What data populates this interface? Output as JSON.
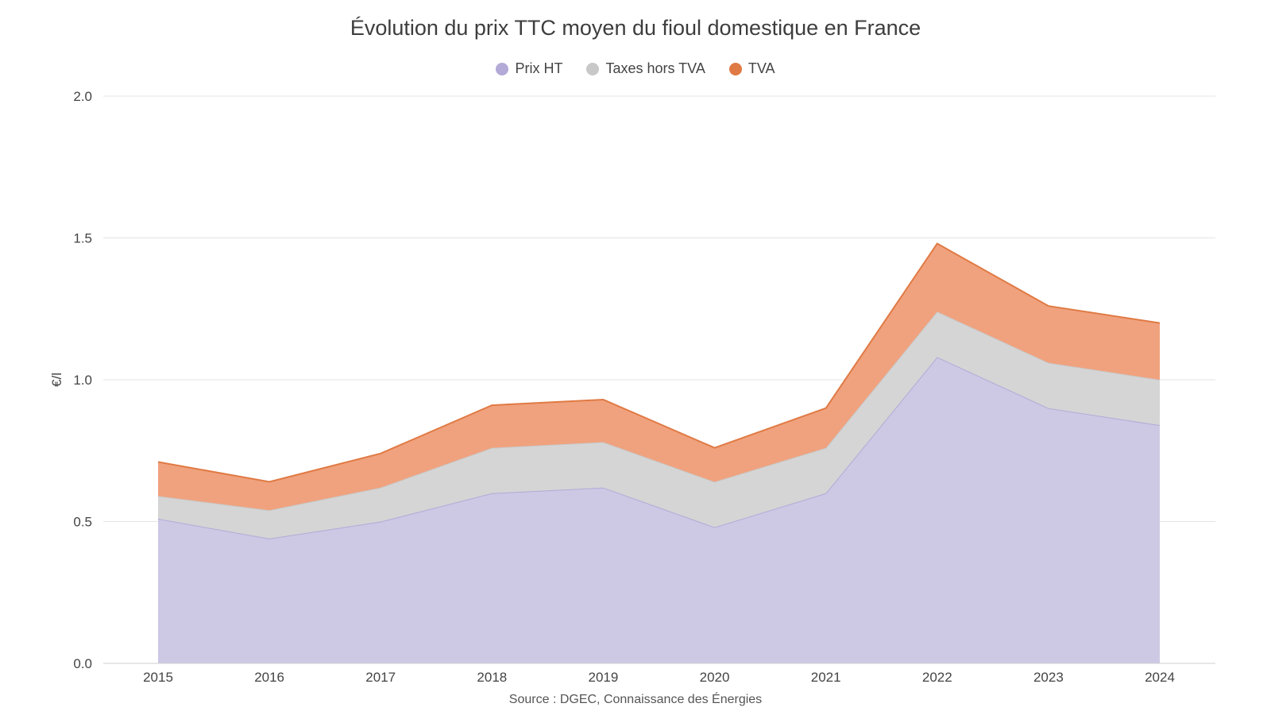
{
  "chart_data": {
    "type": "area",
    "stacked": true,
    "title": "Évolution du prix TTC moyen du fioul domestique en France",
    "xlabel": "",
    "ylabel": "€/l",
    "categories": [
      "2015",
      "2016",
      "2017",
      "2018",
      "2019",
      "2020",
      "2021",
      "2022",
      "2023",
      "2024"
    ],
    "y_ticks": [
      "0.0",
      "0.5",
      "1.0",
      "1.5",
      "2.0"
    ],
    "ylim": [
      0,
      2.0
    ],
    "grid": true,
    "legend_position": "top-center",
    "series": [
      {
        "name": "Prix HT",
        "color": "#b3aad8",
        "fill": "#cdc8e4",
        "values": [
          0.51,
          0.44,
          0.5,
          0.6,
          0.62,
          0.48,
          0.6,
          1.08,
          0.9,
          0.84
        ]
      },
      {
        "name": "Taxes hors TVA",
        "color": "#c8c8c8",
        "fill": "#d5d5d5",
        "values": [
          0.08,
          0.1,
          0.12,
          0.16,
          0.16,
          0.16,
          0.16,
          0.16,
          0.16,
          0.16
        ]
      },
      {
        "name": "TVA",
        "color": "#e07a44",
        "fill": "#f0a27e",
        "values": [
          0.12,
          0.1,
          0.12,
          0.15,
          0.15,
          0.12,
          0.14,
          0.24,
          0.2,
          0.2
        ]
      }
    ],
    "source": "Source : DGEC, Connaissance des Énergies"
  }
}
